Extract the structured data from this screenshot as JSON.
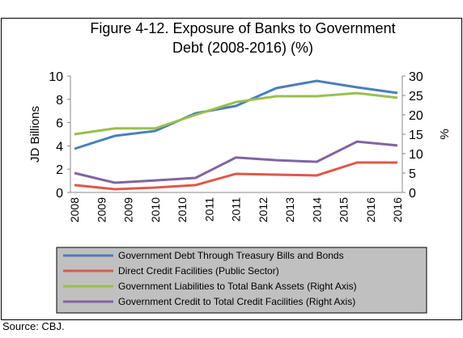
{
  "chart_data": {
    "type": "line",
    "title_lines": [
      "Figure 4-12. Exposure of Banks to Government",
      "Debt (2008-2016) (%)"
    ],
    "categories": [
      "2008",
      "2009",
      "2010",
      "2011",
      "2012",
      "2013",
      "2014",
      "2015",
      "2016"
    ],
    "xtick_labels": [
      "2008",
      "2009",
      "2009",
      "2010",
      "2010",
      "2011",
      "2011",
      "2012",
      "2013",
      "2014",
      "2015",
      "2016",
      "2016"
    ],
    "ylabel": "JD Billions",
    "y2label": "%",
    "ylim": [
      0,
      10
    ],
    "yticks": [
      0,
      2,
      4,
      6,
      8,
      10
    ],
    "y2lim": [
      0,
      30
    ],
    "y2ticks": [
      0,
      5,
      10,
      15,
      20,
      25,
      30
    ],
    "series": [
      {
        "name": "Government Debt Through Treasury Bills and Bonds",
        "color": "#4a7ebb",
        "values": [
          3.75,
          4.86,
          5.28,
          6.8,
          7.43,
          8.96,
          9.58,
          9.03,
          8.54
        ]
      },
      {
        "name": "Direct Credit Facilities (Public Sector)",
        "color": "#e0574a",
        "values": [
          0.63,
          0.28,
          0.42,
          0.63,
          1.6,
          1.53,
          1.46,
          2.57,
          2.57
        ]
      },
      {
        "name": "Government Liabilities to Total Bank Assets (Right Axis)",
        "color": "#98c04c",
        "axis": "y2",
        "values": [
          15,
          16.5,
          16.5,
          20,
          23.3,
          24.8,
          24.8,
          25.6,
          24.4
        ]
      },
      {
        "name": "Government Credit to Total Credit Facilities (Right Axis)",
        "color": "#8064a2",
        "axis": "y2",
        "values": [
          5,
          2.5,
          3.1,
          3.75,
          9,
          8.3,
          7.9,
          13.1,
          12.1
        ]
      }
    ],
    "source": "Source: CBJ."
  }
}
